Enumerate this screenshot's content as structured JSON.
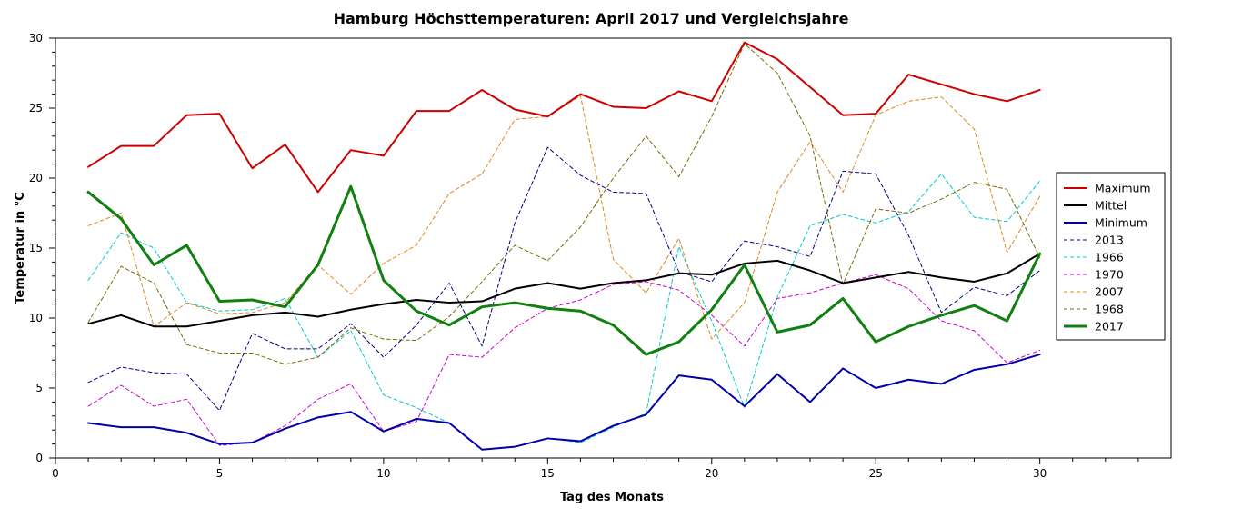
{
  "chart_data": {
    "type": "line",
    "title": "Hamburg Höchsttemperaturen: April 2017 und Vergleichsjahre",
    "xlabel": "Tag des Monats",
    "ylabel": "Temperatur in °C",
    "xlim": [
      0,
      34
    ],
    "ylim": [
      0,
      30
    ],
    "x_ticks": [
      0,
      5,
      10,
      15,
      20,
      25,
      30
    ],
    "y_ticks": [
      0,
      5,
      10,
      15,
      20,
      25,
      30
    ],
    "grid": false,
    "legend_position": "right",
    "x": [
      1,
      2,
      3,
      4,
      5,
      6,
      7,
      8,
      9,
      10,
      11,
      12,
      13,
      14,
      15,
      16,
      17,
      18,
      19,
      20,
      21,
      22,
      23,
      24,
      25,
      26,
      27,
      28,
      29,
      30
    ],
    "series": [
      {
        "name": "Maximum",
        "color": "#cc0000",
        "style": "solid",
        "width": 2,
        "values": [
          20.8,
          22.3,
          22.3,
          24.5,
          24.6,
          20.7,
          22.4,
          19.0,
          22.0,
          21.6,
          24.8,
          24.8,
          26.3,
          24.9,
          24.4,
          26.0,
          25.1,
          25.0,
          26.2,
          25.5,
          29.7,
          28.5,
          26.5,
          24.5,
          24.6,
          27.4,
          26.7,
          26.0,
          25.5,
          26.3
        ]
      },
      {
        "name": "Mittel",
        "color": "#000000",
        "style": "solid",
        "width": 2,
        "values": [
          9.6,
          10.2,
          9.4,
          9.4,
          9.8,
          10.2,
          10.4,
          10.1,
          10.6,
          11.0,
          11.3,
          11.1,
          11.2,
          12.1,
          12.5,
          12.1,
          12.5,
          12.7,
          13.2,
          13.1,
          13.9,
          14.1,
          13.4,
          12.5,
          12.9,
          13.3,
          12.9,
          12.6,
          13.2,
          14.6
        ]
      },
      {
        "name": "Minimum",
        "color": "#0000aa",
        "style": "solid",
        "width": 2,
        "values": [
          2.5,
          2.2,
          2.2,
          1.8,
          1.0,
          1.1,
          2.1,
          2.9,
          3.3,
          1.9,
          2.8,
          2.5,
          0.6,
          0.8,
          1.4,
          1.2,
          2.3,
          3.1,
          5.9,
          5.6,
          3.7,
          6.0,
          4.0,
          6.4,
          5.0,
          5.6,
          5.3,
          6.3,
          6.7,
          7.4
        ]
      },
      {
        "name": "2013",
        "color": "#000080",
        "style": "dashed",
        "width": 1,
        "values": [
          5.4,
          6.5,
          6.1,
          6.0,
          3.4,
          8.9,
          7.8,
          7.8,
          9.6,
          7.2,
          9.5,
          12.5,
          8.0,
          16.8,
          22.2,
          20.2,
          19.0,
          18.9,
          13.3,
          12.6,
          15.5,
          15.1,
          14.4,
          20.5,
          20.3,
          15.9,
          10.4,
          12.2,
          11.6,
          13.4
        ]
      },
      {
        "name": "1966",
        "color": "#00cccc",
        "style": "dashed",
        "width": 1,
        "values": [
          12.7,
          16.1,
          15.0,
          11.1,
          10.5,
          10.6,
          11.4,
          7.2,
          9.1,
          4.5,
          3.6,
          2.5,
          0.6,
          0.8,
          1.4,
          1.1,
          2.2,
          3.2,
          15.1,
          9.8,
          3.6,
          11.5,
          16.6,
          17.4,
          16.8,
          17.6,
          20.3,
          17.2,
          16.9,
          19.8
        ]
      },
      {
        "name": "1970",
        "color": "#cc00cc",
        "style": "dashed",
        "width": 1,
        "values": [
          3.7,
          5.2,
          3.7,
          4.2,
          0.9,
          1.1,
          2.3,
          4.2,
          5.3,
          1.9,
          2.6,
          7.4,
          7.2,
          9.3,
          10.7,
          11.3,
          12.4,
          12.6,
          12.0,
          10.2,
          8.0,
          11.4,
          11.8,
          12.5,
          13.1,
          12.1,
          9.8,
          9.1,
          6.8,
          7.7
        ]
      },
      {
        "name": "2007",
        "color": "#dd8822",
        "style": "dashed",
        "width": 1,
        "values": [
          16.6,
          17.5,
          9.4,
          11.1,
          10.3,
          10.4,
          11.1,
          13.8,
          11.7,
          13.9,
          15.2,
          18.9,
          20.3,
          24.2,
          24.4,
          25.9,
          14.2,
          11.8,
          15.7,
          8.5,
          11.1,
          19.0,
          22.6,
          19.0,
          24.5,
          25.5,
          25.8,
          23.5,
          14.7,
          18.7
        ]
      },
      {
        "name": "1968",
        "color": "#7a6a00",
        "style": "dashed",
        "width": 1,
        "values": [
          9.7,
          13.7,
          12.5,
          8.1,
          7.5,
          7.5,
          6.7,
          7.2,
          9.3,
          8.5,
          8.4,
          10.1,
          12.6,
          15.2,
          14.1,
          16.5,
          20.0,
          23.0,
          20.1,
          24.4,
          29.6,
          27.5,
          23.0,
          12.4,
          17.8,
          17.5,
          18.5,
          19.7,
          19.2,
          14.3
        ]
      },
      {
        "name": "2017",
        "color": "#108010",
        "style": "solid",
        "width": 3,
        "values": [
          19.0,
          17.1,
          13.8,
          15.2,
          11.2,
          11.3,
          10.8,
          13.8,
          19.4,
          12.7,
          10.5,
          9.5,
          10.8,
          11.1,
          10.7,
          10.5,
          9.5,
          7.4,
          8.3,
          10.6,
          13.8,
          9.0,
          9.5,
          11.4,
          8.3,
          9.4,
          10.2,
          10.9,
          9.8,
          14.6
        ]
      }
    ]
  }
}
